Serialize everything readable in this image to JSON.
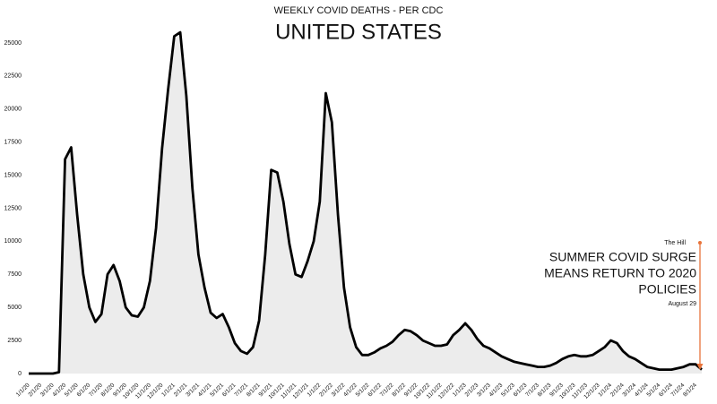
{
  "chart_data": {
    "type": "line",
    "title": "WEEKLY COVID DEATHS - PER CDC",
    "subtitle": "UNITED STATES",
    "annotation": {
      "source": "The Hill",
      "lines": [
        "SUMMER COVID SURGE",
        "MEANS RETURN TO 2020",
        "POLICIES"
      ],
      "date": "August 29"
    },
    "categories": [
      "1/1/20",
      null,
      "2/1/20",
      null,
      "3/1/20",
      null,
      "4/1/20",
      null,
      "5/1/20",
      null,
      "6/1/20",
      null,
      "7/1/20",
      null,
      "8/1/20",
      null,
      "9/1/20",
      null,
      "10/1/20",
      null,
      "11/1/20",
      null,
      "12/1/20",
      null,
      "1/1/21",
      null,
      "2/1/21",
      null,
      "3/1/21",
      null,
      "4/1/21",
      null,
      "5/1/21",
      null,
      "6/1/21",
      null,
      "7/1/21",
      null,
      "8/1/21",
      null,
      "9/1/21",
      null,
      "10/1/21",
      null,
      "11/1/21",
      null,
      "12/1/21",
      null,
      "1/1/22",
      null,
      "2/1/22",
      null,
      "3/1/22",
      null,
      "4/1/22",
      null,
      "5/1/22",
      null,
      "6/1/22",
      null,
      "7/1/22",
      null,
      "8/1/22",
      null,
      "9/1/22",
      null,
      "10/1/22",
      null,
      "11/1/22",
      null,
      "12/1/22",
      null,
      "1/1/23",
      null,
      "2/1/23",
      null,
      "3/1/23",
      null,
      "4/1/23",
      null,
      "5/1/23",
      null,
      "6/1/23",
      null,
      "7/1/23",
      null,
      "8/1/23",
      null,
      "9/1/23",
      null,
      "10/1/23",
      null,
      "11/1/23",
      null,
      "12/1/23",
      null,
      "1/1/24",
      null,
      "2/1/24",
      null,
      "3/1/24",
      null,
      "4/1/24",
      null,
      "5/1/24",
      null,
      "6/1/24",
      null,
      "7/1/24",
      null,
      "8/1/24",
      null
    ],
    "series": [
      {
        "name": "Weekly deaths",
        "color": "#000000",
        "values": [
          0,
          0,
          0,
          0,
          0,
          100,
          16200,
          17100,
          12000,
          7500,
          5000,
          3900,
          4500,
          7500,
          8200,
          7000,
          5000,
          4400,
          4300,
          5000,
          7000,
          11000,
          17000,
          21500,
          25500,
          25800,
          21000,
          14000,
          9000,
          6500,
          4600,
          4200,
          4500,
          3500,
          2300,
          1700,
          1500,
          2000,
          4000,
          9000,
          15400,
          15200,
          13000,
          9800,
          7500,
          7300,
          8500,
          10000,
          13000,
          21200,
          19000,
          12000,
          6500,
          3500,
          2000,
          1400,
          1400,
          1600,
          1900,
          2100,
          2400,
          2900,
          3300,
          3200,
          2900,
          2500,
          2300,
          2100,
          2100,
          2200,
          2900,
          3300,
          3800,
          3300,
          2600,
          2100,
          1900,
          1600,
          1300,
          1100,
          900,
          800,
          700,
          600,
          500,
          500,
          600,
          800,
          1100,
          1300,
          1400,
          1300,
          1300,
          1400,
          1700,
          2000,
          2500,
          2300,
          1700,
          1300,
          1100,
          800,
          500,
          400,
          300,
          300,
          300,
          400,
          500,
          700,
          700,
          300
        ]
      }
    ],
    "ylim": [
      0,
      27500
    ],
    "yticks": [
      0,
      2500,
      5000,
      7500,
      10000,
      12500,
      15000,
      17500,
      20000,
      22500,
      25000
    ],
    "annotation_color": "#e8743b"
  }
}
